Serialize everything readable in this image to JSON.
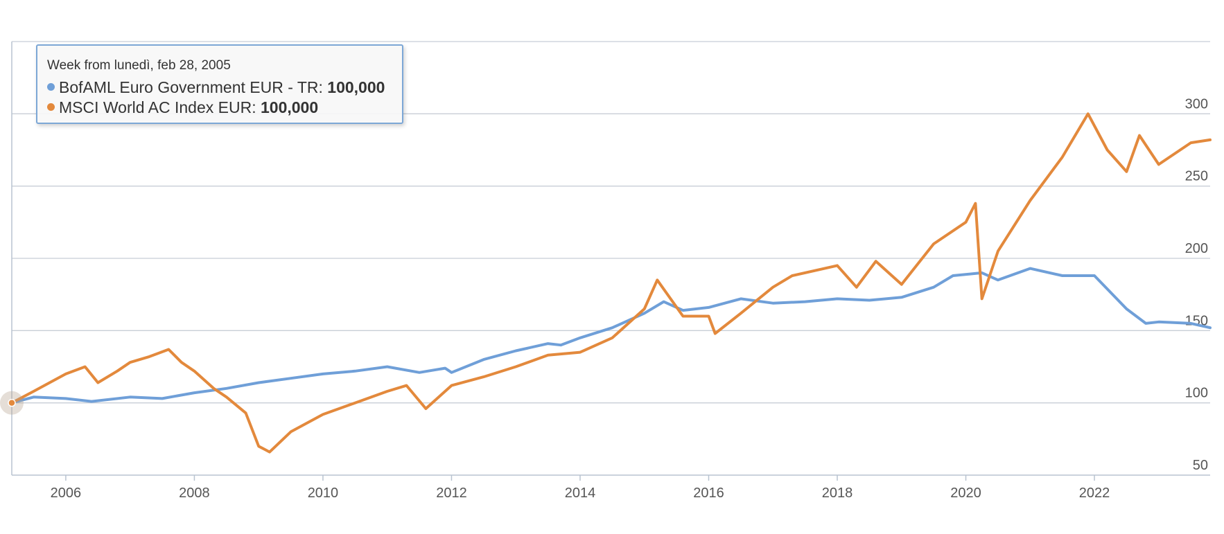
{
  "tooltip": {
    "header": "Week from lunedì, feb 28, 2005",
    "rows": [
      {
        "series": "BofAML Euro Government EUR - TR",
        "value": "100,000",
        "color": "#6f9fd8"
      },
      {
        "series": "MSCI World AC Index EUR",
        "value": "100,000",
        "color": "#e3893c"
      }
    ]
  },
  "chart_data": {
    "type": "line",
    "title": "",
    "xlabel": "",
    "ylabel": "",
    "xlim": [
      2005.16,
      2023.8
    ],
    "ylim": [
      50,
      350
    ],
    "grid": true,
    "legend": "tooltip top-left",
    "x_ticks": [
      "2006",
      "2008",
      "2010",
      "2012",
      "2014",
      "2016",
      "2018",
      "2020",
      "2022"
    ],
    "y_ticks": [
      "50",
      "100",
      "150",
      "200",
      "250",
      "300"
    ],
    "highlight_point": {
      "x": 2005.16,
      "y": 100
    },
    "series": [
      {
        "name": "BofAML Euro Government EUR - TR",
        "color": "#6f9fd8",
        "points": [
          [
            2005.16,
            100
          ],
          [
            2005.5,
            104
          ],
          [
            2006.0,
            103
          ],
          [
            2006.4,
            101
          ],
          [
            2007.0,
            104
          ],
          [
            2007.5,
            103
          ],
          [
            2008.0,
            107
          ],
          [
            2008.5,
            110
          ],
          [
            2009.0,
            114
          ],
          [
            2009.5,
            117
          ],
          [
            2010.0,
            120
          ],
          [
            2010.5,
            122
          ],
          [
            2011.0,
            125
          ],
          [
            2011.5,
            121
          ],
          [
            2011.9,
            124
          ],
          [
            2012.0,
            121
          ],
          [
            2012.5,
            130
          ],
          [
            2013.0,
            136
          ],
          [
            2013.5,
            141
          ],
          [
            2013.7,
            140
          ],
          [
            2014.0,
            145
          ],
          [
            2014.5,
            152
          ],
          [
            2015.0,
            162
          ],
          [
            2015.3,
            170
          ],
          [
            2015.6,
            164
          ],
          [
            2016.0,
            166
          ],
          [
            2016.5,
            172
          ],
          [
            2017.0,
            169
          ],
          [
            2017.5,
            170
          ],
          [
            2018.0,
            172
          ],
          [
            2018.5,
            171
          ],
          [
            2019.0,
            173
          ],
          [
            2019.5,
            180
          ],
          [
            2019.8,
            188
          ],
          [
            2020.25,
            190
          ],
          [
            2020.5,
            185
          ],
          [
            2021.0,
            193
          ],
          [
            2021.5,
            188
          ],
          [
            2022.0,
            188
          ],
          [
            2022.5,
            165
          ],
          [
            2022.8,
            155
          ],
          [
            2023.0,
            156
          ],
          [
            2023.5,
            155
          ],
          [
            2023.8,
            152
          ]
        ]
      },
      {
        "name": "MSCI World AC Index EUR",
        "color": "#e3893c",
        "points": [
          [
            2005.16,
            100
          ],
          [
            2005.5,
            108
          ],
          [
            2006.0,
            120
          ],
          [
            2006.3,
            125
          ],
          [
            2006.5,
            114
          ],
          [
            2006.8,
            122
          ],
          [
            2007.0,
            128
          ],
          [
            2007.3,
            132
          ],
          [
            2007.6,
            137
          ],
          [
            2007.8,
            128
          ],
          [
            2008.0,
            122
          ],
          [
            2008.3,
            110
          ],
          [
            2008.5,
            104
          ],
          [
            2008.8,
            93
          ],
          [
            2009.0,
            70
          ],
          [
            2009.17,
            66
          ],
          [
            2009.5,
            80
          ],
          [
            2010.0,
            92
          ],
          [
            2010.5,
            100
          ],
          [
            2011.0,
            108
          ],
          [
            2011.3,
            112
          ],
          [
            2011.6,
            96
          ],
          [
            2012.0,
            112
          ],
          [
            2012.5,
            118
          ],
          [
            2013.0,
            125
          ],
          [
            2013.5,
            133
          ],
          [
            2014.0,
            135
          ],
          [
            2014.5,
            145
          ],
          [
            2015.0,
            165
          ],
          [
            2015.2,
            185
          ],
          [
            2015.6,
            160
          ],
          [
            2016.0,
            160
          ],
          [
            2016.1,
            148
          ],
          [
            2016.5,
            162
          ],
          [
            2017.0,
            180
          ],
          [
            2017.3,
            188
          ],
          [
            2018.0,
            195
          ],
          [
            2018.3,
            180
          ],
          [
            2018.6,
            198
          ],
          [
            2019.0,
            182
          ],
          [
            2019.5,
            210
          ],
          [
            2020.0,
            225
          ],
          [
            2020.15,
            238
          ],
          [
            2020.25,
            172
          ],
          [
            2020.5,
            205
          ],
          [
            2021.0,
            240
          ],
          [
            2021.5,
            270
          ],
          [
            2021.9,
            300
          ],
          [
            2022.2,
            275
          ],
          [
            2022.5,
            260
          ],
          [
            2022.7,
            285
          ],
          [
            2023.0,
            265
          ],
          [
            2023.5,
            280
          ],
          [
            2023.8,
            282
          ]
        ]
      }
    ]
  }
}
